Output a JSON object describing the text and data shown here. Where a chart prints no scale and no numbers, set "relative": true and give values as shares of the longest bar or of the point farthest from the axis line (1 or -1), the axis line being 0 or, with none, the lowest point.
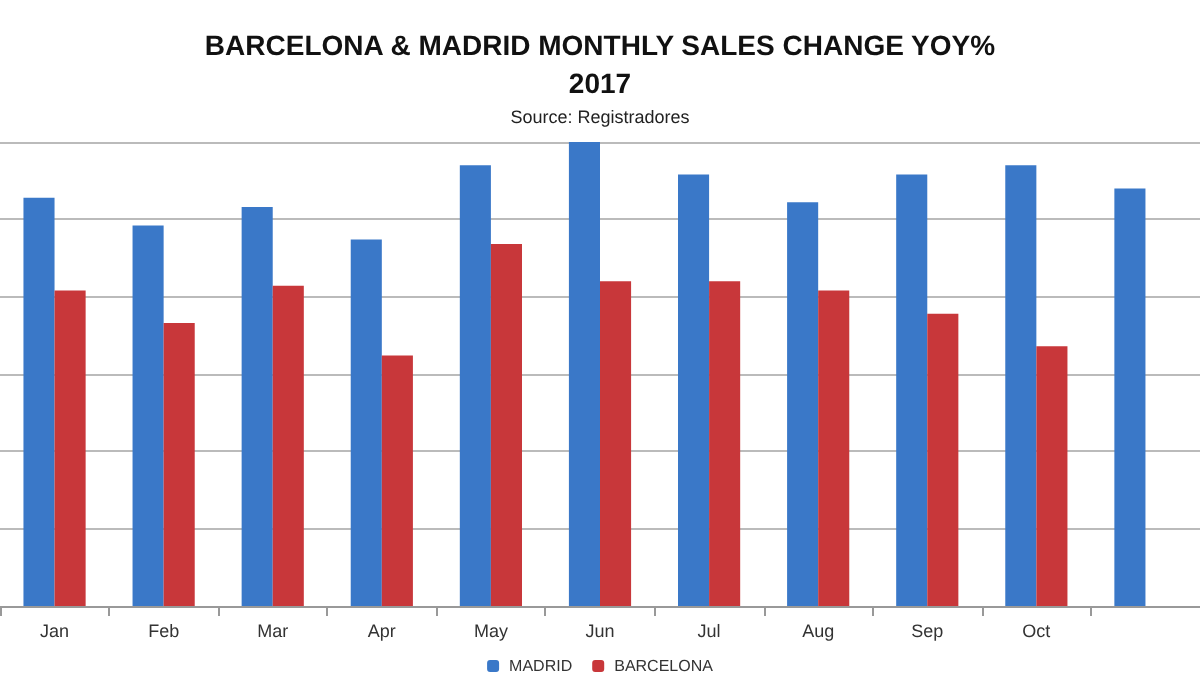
{
  "chart_data": {
    "type": "bar",
    "title": "BARCELONA & MADRID MONTHLY SALES CHANGE YOY%\n2017",
    "subtitle": "Source: Registradores",
    "categories": [
      "Jan",
      "Feb",
      "Mar",
      "Apr",
      "May",
      "Jun",
      "Jul",
      "Aug",
      "Sep",
      "Oct",
      null
    ],
    "relative": true,
    "grid": "y",
    "legend": "bottom",
    "series": [
      {
        "name": "MADRID",
        "color": "#3a78c8",
        "values": [
          0.88,
          0.82,
          0.86,
          0.79,
          0.95,
          1,
          0.93,
          0.87,
          0.93,
          0.95,
          0.9
        ]
      },
      {
        "name": "BARCELONA",
        "color": "#c8373a",
        "values": [
          0.68,
          0.61,
          0.69,
          0.54,
          0.78,
          0.7,
          0.7,
          0.68,
          0.63,
          0.56,
          null
        ]
      }
    ]
  }
}
